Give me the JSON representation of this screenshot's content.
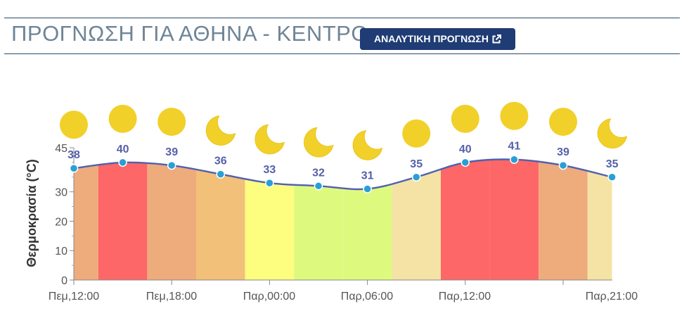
{
  "page": {
    "title": "ΠΡΟΓΝΩΣΗ ΓΙΑ ΑΘΗΝΑ - ΚΕΝΤΡΟ",
    "forecast_button": "ΑΝΑΛΥΤΙΚΗ ΠΡΟΓΝΩΣΗ",
    "forecast_button_icon": "external-link-icon",
    "accent_color": "#1f3c74"
  },
  "chart_data": {
    "type": "area",
    "ylabel": "Θερμοκρασία (°C)",
    "ylim": [
      0,
      45
    ],
    "yticks": [
      0,
      10,
      20,
      30,
      45
    ],
    "xtick_labels": [
      "Πεμ,12:00",
      "Πεμ,18:00",
      "Παρ,00:00",
      "Παρ,06:00",
      "Παρ,12:00",
      "Παρ,21:00"
    ],
    "series": [
      {
        "values": [
          38,
          40,
          39,
          36,
          33,
          32,
          31,
          35,
          40,
          41,
          39,
          35
        ],
        "line_color": "#5060b0",
        "marker_color": "#2a9fd6"
      }
    ],
    "weather_icons": [
      "sun",
      "sun",
      "sun",
      "moon",
      "moon",
      "moon",
      "moon",
      "sun",
      "sun",
      "sun",
      "sun",
      "moon"
    ],
    "band_colors": {
      "30": "#ddfa7f",
      "33": "#fdfd80",
      "35": "#f5e3a6",
      "36": "#f2c078",
      "38": "#eeab7c",
      "39": "#eeab7c",
      "40": "#fd6767",
      "41": "#fd6767"
    },
    "icon_colors": {
      "sun": "#f2d02a",
      "moon": "#f2d02a"
    },
    "grid": false
  }
}
